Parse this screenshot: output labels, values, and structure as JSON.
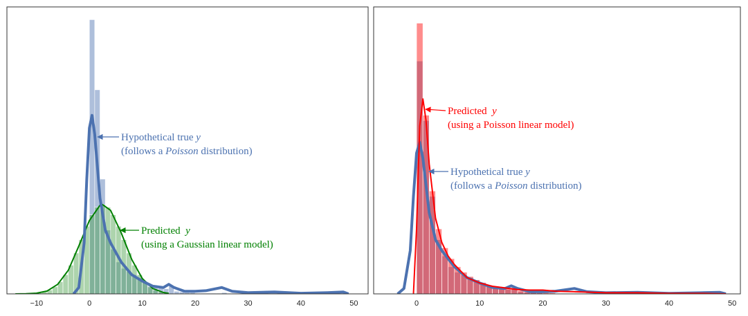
{
  "chart_data": [
    {
      "type": "histogram",
      "xlim": [
        -15.6,
        52.7
      ],
      "ylim": [
        0,
        0.45
      ],
      "xticks": [
        {
          "value": -10,
          "label": "−10"
        },
        0,
        10,
        20,
        30,
        40,
        50
      ],
      "histograms": [
        {
          "color": "#4c72b0",
          "bins": [
            0,
            1,
            2,
            3,
            4,
            5,
            6,
            7,
            8,
            9,
            10,
            11,
            12,
            13,
            14,
            15,
            16,
            17,
            18,
            19,
            20,
            21,
            22,
            23,
            24,
            25,
            26
          ],
          "values": [
            0.43,
            0.32,
            0.18,
            0.1,
            0.07,
            0.05,
            0.04,
            0.035,
            0.03,
            0.025,
            0.02,
            0.015,
            0.012,
            0.01,
            0.008,
            0.012,
            0.004,
            0.003,
            0.002,
            0.002,
            0.001,
            0.001,
            0.001,
            0.001,
            0.001,
            0.002
          ]
        },
        {
          "color": "#4aa04a",
          "bins": [
            -10,
            -9,
            -8,
            -7,
            -6,
            -5,
            -4,
            -3,
            -2,
            -1,
            0,
            1,
            2,
            3,
            4,
            5,
            6,
            7,
            8,
            9,
            10,
            11,
            12,
            13,
            14,
            15
          ],
          "values": [
            0.0016,
            0.0032,
            0.0061,
            0.011,
            0.019,
            0.03,
            0.045,
            0.064,
            0.085,
            0.106,
            0.124,
            0.136,
            0.14,
            0.136,
            0.124,
            0.106,
            0.085,
            0.064,
            0.045,
            0.03,
            0.019,
            0.011,
            0.0061,
            0.0032,
            0.0016
          ]
        }
      ],
      "lines": [
        {
          "color": "#008000",
          "width": 2,
          "x": [
            -14,
            -12,
            -10,
            -8,
            -6,
            -4,
            -2,
            0,
            2,
            2.5,
            4,
            6,
            8,
            10,
            12,
            14,
            15
          ],
          "values": [
            0,
            0.0002,
            0.0011,
            0.0044,
            0.015,
            0.037,
            0.075,
            0.115,
            0.139,
            0.14,
            0.131,
            0.096,
            0.054,
            0.024,
            0.0083,
            0.0022,
            0.0009
          ]
        },
        {
          "color": "#4c72b0",
          "width": 4,
          "x": [
            -3,
            -2,
            -1,
            -0.5,
            0,
            0.5,
            1,
            1.5,
            2,
            3,
            4,
            5,
            6,
            7,
            8,
            10,
            12,
            14,
            15,
            16,
            18,
            20,
            22,
            25,
            27,
            30,
            35,
            40,
            45,
            48,
            49
          ],
          "values": [
            0,
            0.01,
            0.08,
            0.18,
            0.26,
            0.28,
            0.25,
            0.2,
            0.15,
            0.1,
            0.08,
            0.065,
            0.05,
            0.04,
            0.03,
            0.02,
            0.012,
            0.01,
            0.015,
            0.01,
            0.004,
            0.004,
            0.005,
            0.01,
            0.004,
            0.002,
            0.003,
            0.001,
            0.002,
            0.003,
            0
          ]
        }
      ],
      "annotations": [
        {
          "color": "#4c72b0",
          "lines": [
            [
              "Hypothetical true ",
              "y"
            ],
            [
              "(follows a ",
              "Poisson",
              " distribution)"
            ]
          ]
        },
        {
          "color": "#008000",
          "lines": [
            [
              "Predicted  ",
              "y"
            ],
            [
              "(using a Gaussian linear model)"
            ]
          ]
        }
      ]
    },
    {
      "type": "histogram",
      "xlim": [
        -6.8,
        51.3
      ],
      "ylim": [
        0,
        0.53
      ],
      "xticks": [
        0,
        10,
        20,
        30,
        40,
        50
      ],
      "histograms": [
        {
          "color": "#4c72b0",
          "bins": [
            0,
            1,
            2,
            3,
            4,
            5,
            6,
            7,
            8,
            9,
            10,
            11,
            12,
            13,
            14,
            15,
            16,
            17,
            18,
            19,
            20,
            21,
            22,
            23,
            24,
            25,
            26
          ],
          "values": [
            0.43,
            0.32,
            0.18,
            0.1,
            0.07,
            0.05,
            0.04,
            0.035,
            0.03,
            0.025,
            0.02,
            0.015,
            0.012,
            0.01,
            0.008,
            0.012,
            0.004,
            0.003,
            0.002,
            0.002,
            0.001,
            0.001,
            0.001,
            0.001,
            0.001,
            0.002
          ]
        },
        {
          "color": "#ff0000",
          "bins": [
            0,
            1,
            2,
            3,
            4,
            5,
            6,
            7,
            8,
            9,
            10,
            11,
            12,
            13,
            14,
            15,
            16,
            17,
            18,
            19,
            20,
            21,
            22,
            23,
            24,
            25,
            26
          ],
          "values": [
            0.5,
            0.33,
            0.19,
            0.12,
            0.085,
            0.065,
            0.05,
            0.04,
            0.032,
            0.026,
            0.021,
            0.016,
            0.014,
            0.012,
            0.01,
            0.01,
            0.006,
            0.004,
            0.003,
            0.002,
            0.005,
            0.002,
            0.001,
            0.001,
            0.001,
            0.001
          ]
        }
      ],
      "lines": [
        {
          "color": "#4c72b0",
          "width": 4,
          "x": [
            -3,
            -2,
            -1,
            -0.5,
            0,
            0.5,
            1,
            1.5,
            2,
            3,
            4,
            5,
            6,
            7,
            8,
            10,
            12,
            14,
            15,
            16,
            18,
            20,
            22,
            25,
            27,
            30,
            35,
            40,
            45,
            48,
            49
          ],
          "values": [
            0,
            0.01,
            0.08,
            0.18,
            0.26,
            0.28,
            0.25,
            0.2,
            0.15,
            0.1,
            0.08,
            0.065,
            0.05,
            0.04,
            0.03,
            0.02,
            0.012,
            0.01,
            0.015,
            0.01,
            0.004,
            0.004,
            0.005,
            0.01,
            0.004,
            0.002,
            0.003,
            0.001,
            0.002,
            0.003,
            0
          ]
        },
        {
          "color": "#ff0000",
          "width": 2,
          "x": [
            -0.5,
            0,
            0.5,
            1,
            1.5,
            2,
            3,
            4,
            5,
            6,
            8,
            10,
            12,
            14,
            16,
            18,
            20,
            22,
            25,
            30,
            35,
            40,
            45,
            49
          ],
          "values": [
            0,
            0.12,
            0.31,
            0.36,
            0.32,
            0.24,
            0.14,
            0.095,
            0.07,
            0.054,
            0.03,
            0.02,
            0.014,
            0.011,
            0.008,
            0.007,
            0.007,
            0.005,
            0.004,
            0.002,
            0.002,
            0.001,
            0.001,
            0
          ]
        }
      ],
      "annotations": [
        {
          "color": "#ff0000",
          "lines": [
            [
              "Predicted  ",
              "y"
            ],
            [
              "(using a Poisson linear model)"
            ]
          ]
        },
        {
          "color": "#4c72b0",
          "lines": [
            [
              "Hypothetical true ",
              "y"
            ],
            [
              "(follows a ",
              "Poisson",
              " distribution)"
            ]
          ]
        }
      ]
    }
  ]
}
